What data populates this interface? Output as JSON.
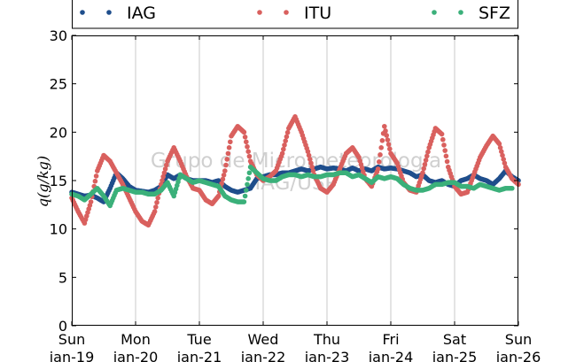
{
  "chart_data": {
    "type": "scatter",
    "title": "",
    "xlabel": "",
    "ylabel": "q(g/kg)",
    "ylim": [
      0,
      30
    ],
    "yticks": [
      0,
      5,
      10,
      15,
      20,
      25,
      30
    ],
    "xlim": [
      0,
      7
    ],
    "x_unit": "days from Sun jan-19 00:00",
    "xtick_labels": [
      [
        "Sun",
        "jan-19"
      ],
      [
        "Mon",
        "jan-20"
      ],
      [
        "Tue",
        "jan-21"
      ],
      [
        "Wed",
        "jan-22"
      ],
      [
        "Thu",
        "jan-23"
      ],
      [
        "Fri",
        "jan-24"
      ],
      [
        "Sat",
        "jan-25"
      ],
      [
        "Sun",
        "jan-26"
      ]
    ],
    "grid": "vertical",
    "legend_position": "top",
    "watermark": [
      "Grupo de Micrometeorologia",
      "IAG/USP"
    ],
    "series": [
      {
        "name": "IAG",
        "color": "#1f4e8c",
        "x": [
          0.0,
          0.1,
          0.2,
          0.3,
          0.4,
          0.5,
          0.6,
          0.7,
          0.8,
          0.9,
          1.0,
          1.1,
          1.2,
          1.3,
          1.4,
          1.5,
          1.6,
          1.7,
          1.8,
          1.9,
          2.0,
          2.1,
          2.2,
          2.3,
          2.4,
          2.5,
          2.6,
          2.7,
          2.8,
          2.9,
          3.0,
          3.1,
          3.2,
          3.3,
          3.4,
          3.5,
          3.6,
          3.7,
          3.8,
          3.9,
          4.0,
          4.1,
          4.2,
          4.3,
          4.4,
          4.5,
          4.6,
          4.7,
          4.8,
          4.9,
          5.0,
          5.1,
          5.2,
          5.3,
          5.4,
          5.5,
          5.6,
          5.7,
          5.8,
          5.9,
          6.0,
          6.1,
          6.2,
          6.3,
          6.4,
          6.5,
          6.6,
          6.7,
          6.8,
          6.9,
          7.0
        ],
        "y": [
          13.8,
          13.6,
          13.4,
          13.5,
          13.2,
          12.8,
          14.2,
          15.8,
          15.2,
          14.4,
          14.0,
          13.9,
          13.8,
          14.0,
          14.4,
          15.6,
          15.2,
          15.6,
          15.2,
          15.0,
          15.0,
          15.0,
          14.8,
          15.0,
          14.4,
          14.0,
          13.8,
          14.0,
          14.2,
          15.2,
          15.4,
          15.6,
          15.6,
          15.8,
          15.8,
          16.0,
          16.2,
          16.0,
          16.2,
          16.4,
          16.2,
          16.3,
          16.2,
          16.0,
          16.3,
          16.0,
          16.2,
          16.0,
          16.4,
          16.2,
          16.3,
          16.2,
          16.0,
          15.8,
          15.4,
          15.6,
          15.0,
          14.8,
          15.0,
          14.6,
          14.4,
          15.0,
          15.2,
          15.6,
          15.2,
          15.0,
          14.6,
          15.2,
          16.0,
          15.4,
          15.0
        ]
      },
      {
        "name": "ITU",
        "color": "#d9605e",
        "x": [
          0.0,
          0.1,
          0.2,
          0.3,
          0.4,
          0.5,
          0.6,
          0.7,
          0.8,
          0.9,
          1.0,
          1.1,
          1.2,
          1.3,
          1.4,
          1.5,
          1.6,
          1.7,
          1.8,
          1.9,
          2.0,
          2.1,
          2.2,
          2.3,
          2.4,
          2.5,
          2.6,
          2.7,
          2.8,
          2.9,
          3.0,
          3.1,
          3.2,
          3.3,
          3.4,
          3.5,
          3.6,
          3.7,
          3.8,
          3.9,
          4.0,
          4.1,
          4.2,
          4.3,
          4.4,
          4.5,
          4.6,
          4.7,
          4.8,
          4.9,
          5.0,
          5.1,
          5.2,
          5.3,
          5.4,
          5.5,
          5.6,
          5.7,
          5.8,
          5.9,
          6.0,
          6.1,
          6.2,
          6.3,
          6.4,
          6.5,
          6.6,
          6.7,
          6.8,
          6.9,
          7.0
        ],
        "y": [
          13.2,
          11.8,
          10.6,
          12.8,
          16.0,
          17.6,
          17.0,
          15.8,
          14.6,
          13.2,
          11.8,
          10.8,
          10.4,
          11.8,
          14.6,
          17.0,
          18.4,
          17.0,
          15.4,
          14.2,
          14.0,
          13.0,
          12.6,
          13.4,
          16.0,
          19.6,
          20.6,
          20.0,
          17.0,
          15.6,
          15.0,
          15.4,
          16.0,
          17.8,
          20.4,
          21.6,
          20.0,
          18.0,
          15.6,
          14.2,
          13.8,
          14.6,
          16.2,
          17.8,
          18.4,
          17.4,
          15.2,
          14.4,
          16.2,
          20.6,
          17.8,
          16.8,
          14.8,
          14.0,
          13.8,
          15.8,
          18.4,
          20.4,
          19.8,
          16.4,
          14.4,
          13.6,
          13.8,
          15.6,
          17.4,
          18.6,
          19.6,
          18.8,
          16.4,
          15.2,
          14.6
        ]
      },
      {
        "name": "SFZ",
        "color": "#3bb07a",
        "x": [
          0.0,
          0.1,
          0.2,
          0.3,
          0.4,
          0.5,
          0.6,
          0.7,
          0.8,
          0.9,
          1.0,
          1.1,
          1.2,
          1.3,
          1.4,
          1.5,
          1.6,
          1.7,
          1.8,
          1.9,
          2.0,
          2.1,
          2.2,
          2.3,
          2.4,
          2.5,
          2.6,
          2.7,
          2.8,
          2.9,
          3.0,
          3.1,
          3.2,
          3.3,
          3.4,
          3.5,
          3.6,
          3.7,
          3.8,
          3.9,
          4.0,
          4.1,
          4.2,
          4.3,
          4.4,
          4.5,
          4.6,
          4.7,
          4.8,
          4.9,
          5.0,
          5.1,
          5.2,
          5.3,
          5.4,
          5.5,
          5.6,
          5.7,
          5.8,
          5.9,
          6.0,
          6.1,
          6.2,
          6.3,
          6.4,
          6.5,
          6.6,
          6.7,
          6.8,
          6.9
        ],
        "y": [
          13.6,
          13.4,
          13.0,
          13.6,
          14.2,
          13.4,
          12.4,
          14.0,
          14.2,
          14.0,
          13.8,
          13.8,
          13.6,
          13.6,
          14.0,
          14.8,
          13.4,
          15.6,
          15.2,
          14.8,
          15.0,
          14.8,
          14.6,
          14.4,
          13.4,
          13.0,
          12.8,
          12.8,
          16.4,
          15.8,
          15.2,
          15.0,
          15.0,
          15.4,
          15.6,
          15.6,
          15.4,
          15.6,
          15.4,
          15.4,
          15.6,
          15.6,
          15.8,
          15.8,
          15.4,
          15.6,
          15.2,
          14.8,
          15.4,
          15.2,
          15.4,
          15.2,
          14.6,
          14.2,
          14.0,
          14.0,
          14.2,
          14.6,
          14.6,
          14.8,
          14.8,
          14.4,
          14.4,
          14.2,
          14.6,
          14.4,
          14.2,
          14.0,
          14.2,
          14.2
        ]
      }
    ]
  }
}
